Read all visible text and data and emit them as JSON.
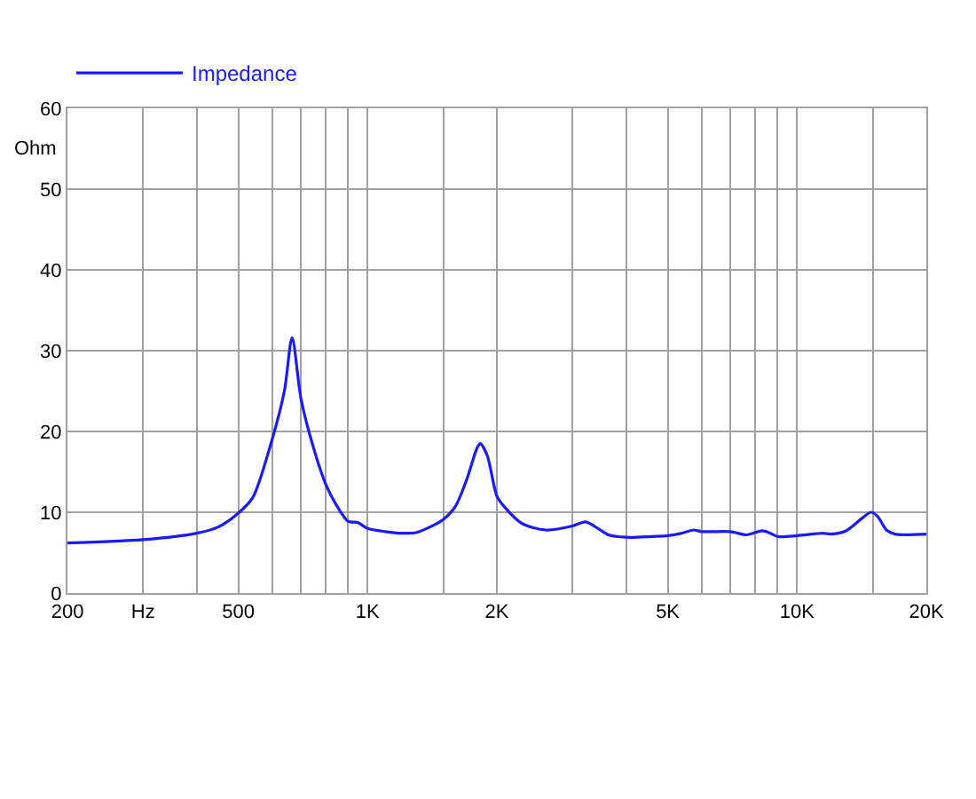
{
  "chart_data": {
    "type": "line",
    "ylabel": "Ohm",
    "legend": "top left",
    "grid": true,
    "log": "x",
    "marker": "none",
    "line_style": "solid",
    "xlim": [
      200,
      20000
    ],
    "ylim": [
      0,
      60
    ],
    "xticks": [
      200,
      {
        "value": 300,
        "label": "Hz"
      },
      {
        "value": 400,
        "label": null
      },
      500,
      {
        "value": 600,
        "label": null
      },
      {
        "value": 700,
        "label": null
      },
      {
        "value": 800,
        "label": null
      },
      {
        "value": 900,
        "label": null
      },
      {
        "value": 1000,
        "label": "1K"
      },
      {
        "value": 1500,
        "label": null
      },
      {
        "value": 2000,
        "label": "2K"
      },
      {
        "value": 3000,
        "label": null
      },
      {
        "value": 4000,
        "label": null
      },
      {
        "value": 5000,
        "label": "5K"
      },
      {
        "value": 6000,
        "label": null
      },
      {
        "value": 7000,
        "label": null
      },
      {
        "value": 8000,
        "label": null
      },
      {
        "value": 9000,
        "label": null
      },
      {
        "value": 10000,
        "label": "10K"
      },
      {
        "value": 15000,
        "label": null
      },
      {
        "value": 20000,
        "label": "20K"
      }
    ],
    "yticks": [
      0,
      10,
      20,
      30,
      40,
      50,
      60
    ],
    "x": [
      200,
      300,
      400,
      450,
      500,
      540,
      600,
      640,
      667,
      700,
      750,
      800,
      850,
      900,
      950,
      1000,
      1100,
      1200,
      1300,
      1400,
      1500,
      1600,
      1700,
      1800,
      1830,
      1900,
      2000,
      2080,
      2290,
      2600,
      3000,
      3220,
      3460,
      3640,
      4000,
      4610,
      5000,
      5390,
      5740,
      6000,
      7000,
      7620,
      8300,
      8670,
      9000,
      10000,
      11470,
      12000,
      13000,
      14200,
      14860,
      15400,
      16150,
      16900,
      20000
    ],
    "series": [
      {
        "name": "Impedance",
        "color": "#1a1aff",
        "values": [
          6.2,
          6.6,
          7.4,
          8.2,
          9.9,
          11.8,
          19.1,
          25,
          31.6,
          24,
          17.8,
          13.4,
          10.7,
          8.9,
          8.7,
          8.0,
          7.6,
          7.4,
          7.5,
          8.2,
          9.1,
          10.7,
          14,
          18,
          18.5,
          17,
          12,
          10.7,
          8.6,
          7.8,
          8.3,
          8.8,
          7.9,
          7.2,
          6.9,
          7.0,
          7.1,
          7.4,
          7.8,
          7.6,
          7.6,
          7.2,
          7.7,
          7.4,
          7.0,
          7.1,
          7.4,
          7.3,
          7.7,
          9.3,
          10.0,
          9.5,
          7.8,
          7.3,
          7.3
        ]
      }
    ]
  }
}
